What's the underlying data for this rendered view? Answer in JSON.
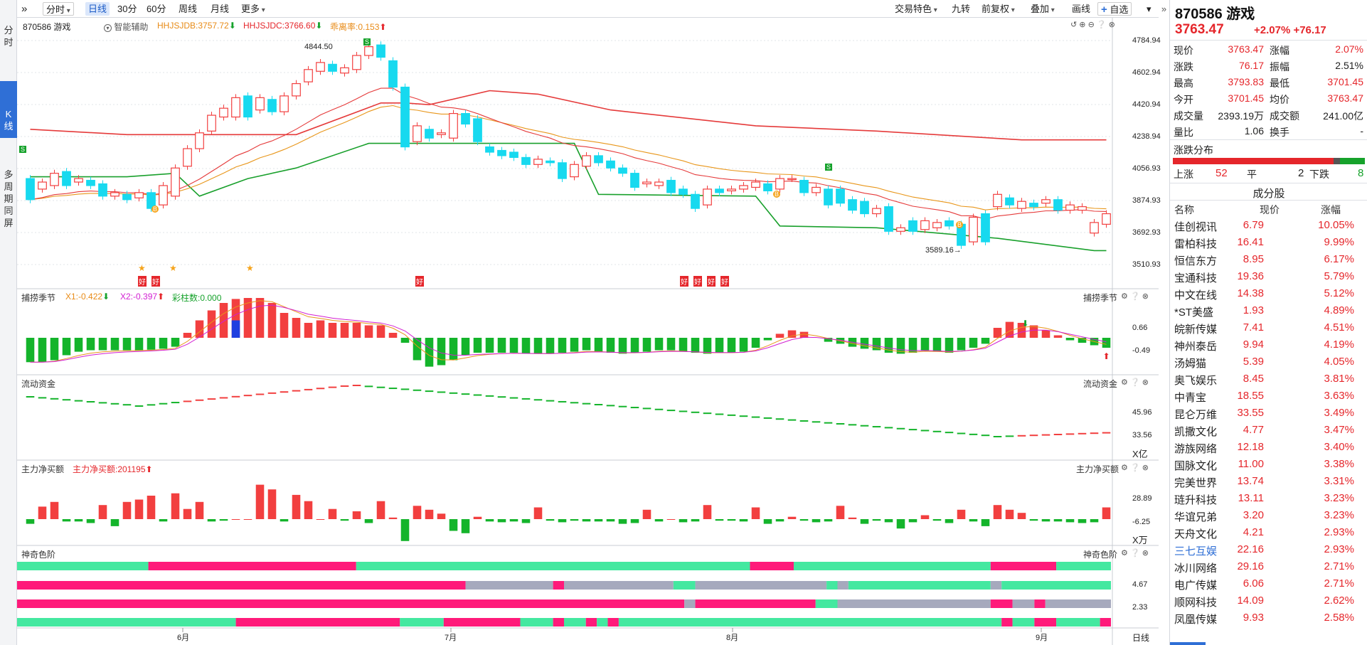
{
  "sidebar": {
    "items": [
      {
        "label": "分\n时",
        "active": false
      },
      {
        "label": "K\n线",
        "active": true
      },
      {
        "label": "多\n周\n期\n同\n屏",
        "active": false
      }
    ]
  },
  "toolbar": {
    "menu_icon": "double-chevron-right-icon",
    "period": {
      "label": "分时"
    },
    "tabs": [
      "日线",
      "30分",
      "60分",
      "周线",
      "月线"
    ],
    "selected_tab": "日线",
    "more": "更多",
    "right": [
      "交易特色",
      "九转",
      "前复权",
      "叠加",
      "画线"
    ],
    "watch": "自选"
  },
  "main_panel": {
    "stock": "870586 游戏",
    "assist": "智能辅助",
    "ind1": "HHJSJDB:3757.72",
    "ind2": "HHJSJDC:3766.60",
    "ind3": "乖离率:0.153",
    "high_label": "4844.50",
    "low_label": "3589.16",
    "y_ticks": [
      "4784.94",
      "4602.94",
      "4420.94",
      "4238.94",
      "4056.93",
      "3874.93",
      "3692.93",
      "3510.93"
    ],
    "badges": [
      "好",
      "好",
      "好",
      "好",
      "好",
      "好",
      "好"
    ],
    "b_signal": "B",
    "s_signal": "S"
  },
  "panel2": {
    "title": "捕捞季节",
    "x1": "X1:-0.422",
    "x2": "X2:-0.397",
    "extra": "彩柱数:0.000",
    "right_title": "捕捞季节",
    "y_ticks": [
      "0.66",
      "-0.49"
    ]
  },
  "panel3": {
    "title": "流动资金",
    "right_title": "流动资金",
    "y_ticks": [
      "45.96",
      "33.56"
    ],
    "unit": "X亿"
  },
  "panel4": {
    "title": "主力净买额",
    "value": "主力净买额:201195",
    "right_title": "主力净买额",
    "y_ticks": [
      "28.89",
      "-6.25"
    ],
    "unit": "X万"
  },
  "panel5": {
    "title": "神奇色阶",
    "right_title": "神奇色阶",
    "y_ticks": [
      "4.67",
      "2.33"
    ]
  },
  "x_axis": {
    "months": [
      "6月",
      "7月",
      "8月",
      "9月"
    ],
    "period_label": "日线"
  },
  "colors": {
    "up": "#f23f3f",
    "down": "#17d9ef",
    "green_line": "#19a02c",
    "red_line": "#e53a3a",
    "pink": "#ff1a7a",
    "mint": "#44e8a0",
    "grey": "#a6a9bd"
  },
  "chart_data": {
    "type": "candlestick",
    "y_range": [
      3510.93,
      4784.94
    ],
    "labeled_high": 4844.5,
    "labeled_low": 3589.16,
    "candles": [
      [
        4000,
        3880
      ],
      [
        3940,
        3980
      ],
      [
        3960,
        4030
      ],
      [
        4040,
        3960
      ],
      [
        3980,
        4000
      ],
      [
        3990,
        3960
      ],
      [
        3970,
        3900
      ],
      [
        3900,
        3920
      ],
      [
        3910,
        3880
      ],
      [
        3890,
        3920
      ],
      [
        3920,
        3830
      ],
      [
        3850,
        3960
      ],
      [
        3900,
        4060
      ],
      [
        4070,
        4170
      ],
      [
        4170,
        4260
      ],
      [
        4270,
        4360
      ],
      [
        4350,
        4400
      ],
      [
        4350,
        4460
      ],
      [
        4470,
        4350
      ],
      [
        4390,
        4460
      ],
      [
        4450,
        4380
      ],
      [
        4380,
        4470
      ],
      [
        4470,
        4540
      ],
      [
        4550,
        4620
      ],
      [
        4610,
        4660
      ],
      [
        4650,
        4610
      ],
      [
        4600,
        4630
      ],
      [
        4620,
        4700
      ],
      [
        4700,
        4750
      ],
      [
        4760,
        4690
      ],
      [
        4670,
        4520
      ],
      [
        4520,
        4180
      ],
      [
        4210,
        4300
      ],
      [
        4280,
        4230
      ],
      [
        4250,
        4260
      ],
      [
        4230,
        4370
      ],
      [
        4370,
        4310
      ],
      [
        4340,
        4210
      ],
      [
        4180,
        4150
      ],
      [
        4160,
        4130
      ],
      [
        4150,
        4120
      ],
      [
        4120,
        4080
      ],
      [
        4080,
        4110
      ],
      [
        4100,
        4090
      ],
      [
        4090,
        4000
      ],
      [
        4010,
        4080
      ],
      [
        4070,
        4130
      ],
      [
        4130,
        4090
      ],
      [
        4100,
        4060
      ],
      [
        4060,
        4030
      ],
      [
        4030,
        3950
      ],
      [
        3970,
        3980
      ],
      [
        3960,
        3980
      ],
      [
        3990,
        3920
      ],
      [
        3940,
        3910
      ],
      [
        3910,
        3830
      ],
      [
        3850,
        3940
      ],
      [
        3940,
        3920
      ],
      [
        3930,
        3940
      ],
      [
        3940,
        3960
      ],
      [
        3950,
        3980
      ],
      [
        3970,
        3930
      ],
      [
        3940,
        4000
      ],
      [
        4000,
        4000
      ],
      [
        3990,
        3920
      ],
      [
        3920,
        3950
      ],
      [
        3940,
        3850
      ],
      [
        3940,
        3860
      ],
      [
        3880,
        3820
      ],
      [
        3870,
        3800
      ],
      [
        3800,
        3830
      ],
      [
        3840,
        3700
      ],
      [
        3700,
        3720
      ],
      [
        3760,
        3700
      ],
      [
        3710,
        3760
      ],
      [
        3720,
        3750
      ],
      [
        3760,
        3730
      ],
      [
        3740,
        3620
      ],
      [
        3640,
        3780
      ],
      [
        3800,
        3640
      ],
      [
        3840,
        3910
      ],
      [
        3890,
        3850
      ],
      [
        3830,
        3870
      ],
      [
        3860,
        3840
      ],
      [
        3860,
        3880
      ],
      [
        3880,
        3820
      ],
      [
        3820,
        3850
      ],
      [
        3820,
        3840
      ],
      [
        3690,
        3750
      ],
      [
        3740,
        3800
      ]
    ],
    "osc_bars": [
      -0.49,
      -0.49,
      -0.45,
      -0.35,
      -0.28,
      -0.25,
      -0.25,
      -0.25,
      -0.25,
      -0.25,
      -0.24,
      -0.22,
      -0.18,
      0.1,
      0.35,
      0.55,
      0.7,
      0.78,
      0.8,
      0.8,
      0.7,
      0.5,
      0.4,
      0.3,
      0.35,
      0.3,
      0.3,
      0.3,
      0.25,
      0.25,
      0.1,
      -0.1,
      -0.45,
      -0.58,
      -0.55,
      -0.45,
      -0.35,
      -0.3,
      -0.3,
      -0.3,
      -0.3,
      -0.32,
      -0.32,
      -0.32,
      -0.3,
      -0.28,
      -0.25,
      -0.28,
      -0.3,
      -0.32,
      -0.3,
      -0.28,
      -0.25,
      -0.25,
      -0.28,
      -0.3,
      -0.32,
      -0.3,
      -0.3,
      -0.28,
      -0.2,
      -0.05,
      0.08,
      0.15,
      0.12,
      0.0,
      -0.08,
      -0.12,
      -0.18,
      -0.22,
      -0.25,
      -0.3,
      -0.32,
      -0.3,
      -0.25,
      -0.28,
      -0.3,
      -0.25,
      -0.2,
      -0.12,
      0.2,
      0.32,
      0.3,
      0.25,
      0.15,
      0.05,
      -0.05,
      -0.1,
      -0.15,
      -0.2
    ],
    "net_buy": [
      -6,
      16,
      22,
      -3,
      -3,
      -5,
      18,
      -9,
      22,
      25,
      30,
      -3,
      33,
      13,
      22,
      -3,
      -2,
      0,
      0,
      44,
      38,
      -3,
      31,
      23,
      0,
      13,
      -2,
      10,
      -5,
      23,
      2,
      -28,
      17,
      12,
      7,
      -15,
      -18,
      3,
      -3,
      -4,
      -3,
      -5,
      15,
      -2,
      -4,
      -2,
      -3,
      -3,
      -3,
      -6,
      -5,
      12,
      -3,
      0,
      -4,
      -3,
      18,
      -2,
      -2,
      -3,
      15,
      -6,
      -3,
      3,
      -2,
      -4,
      -3,
      17,
      2,
      -6,
      -2,
      -4,
      -12,
      -4,
      5,
      -2,
      -5,
      12,
      -3,
      -9,
      18,
      12,
      8,
      -2,
      -3,
      -3,
      -4,
      -5,
      -4,
      15
    ]
  },
  "quote": {
    "code": "870586 游戏",
    "price": "3763.47",
    "change": "+2.07% +76.17",
    "stats": [
      {
        "l1": "现价",
        "v1": "3763.47",
        "c1": "red",
        "l2": "涨幅",
        "v2": "2.07%",
        "c2": "red"
      },
      {
        "l1": "涨跌",
        "v1": "76.17",
        "c1": "red",
        "l2": "振幅",
        "v2": "2.51%",
        "c2": ""
      },
      {
        "l1": "最高",
        "v1": "3793.83",
        "c1": "red",
        "l2": "最低",
        "v2": "3701.45",
        "c2": "red"
      },
      {
        "l1": "今开",
        "v1": "3701.45",
        "c1": "red",
        "l2": "均价",
        "v2": "3763.47",
        "c2": "red"
      },
      {
        "l1": "成交量",
        "v1": "2393.19万",
        "c1": "",
        "l2": "成交额",
        "v2": "241.00亿",
        "c2": ""
      },
      {
        "l1": "量比",
        "v1": "1.06",
        "c1": "",
        "l2": "换手",
        "v2": "-",
        "c2": ""
      }
    ],
    "dist_title": "涨跌分布",
    "up_label": "上涨",
    "up": "52",
    "flat_label": "平",
    "flat": "2",
    "down_label": "下跌",
    "down": "8",
    "components_title": "成分股",
    "headers": [
      "名称",
      "现价",
      "涨幅"
    ],
    "stocks": [
      {
        "name": "佳创视讯",
        "price": "6.79",
        "pct": "10.05%"
      },
      {
        "name": "雷柏科技",
        "price": "16.41",
        "pct": "9.99%"
      },
      {
        "name": "恒信东方",
        "price": "8.95",
        "pct": "6.17%"
      },
      {
        "name": "宝通科技",
        "price": "19.36",
        "pct": "5.79%"
      },
      {
        "name": "中文在线",
        "price": "14.38",
        "pct": "5.12%"
      },
      {
        "name": "*ST美盛",
        "price": "1.93",
        "pct": "4.89%"
      },
      {
        "name": "皖新传媒",
        "price": "7.41",
        "pct": "4.51%"
      },
      {
        "name": "神州泰岳",
        "price": "9.94",
        "pct": "4.19%"
      },
      {
        "name": "汤姆猫",
        "price": "5.39",
        "pct": "4.05%"
      },
      {
        "name": "奥飞娱乐",
        "price": "8.45",
        "pct": "3.81%"
      },
      {
        "name": "中青宝",
        "price": "18.55",
        "pct": "3.63%"
      },
      {
        "name": "昆仑万维",
        "price": "33.55",
        "pct": "3.49%"
      },
      {
        "name": "凯撒文化",
        "price": "4.77",
        "pct": "3.47%"
      },
      {
        "name": "游族网络",
        "price": "12.18",
        "pct": "3.40%"
      },
      {
        "name": "国脉文化",
        "price": "11.00",
        "pct": "3.38%"
      },
      {
        "name": "完美世界",
        "price": "13.74",
        "pct": "3.31%"
      },
      {
        "name": "琏升科技",
        "price": "13.11",
        "pct": "3.23%"
      },
      {
        "name": "华谊兄弟",
        "price": "3.20",
        "pct": "3.23%"
      },
      {
        "name": "天舟文化",
        "price": "4.21",
        "pct": "2.93%"
      },
      {
        "name": "三七互娱",
        "price": "22.16",
        "pct": "2.93%",
        "highlight": true
      },
      {
        "name": "冰川网络",
        "price": "29.16",
        "pct": "2.71%"
      },
      {
        "name": "电广传媒",
        "price": "6.06",
        "pct": "2.71%"
      },
      {
        "name": "顺网科技",
        "price": "14.09",
        "pct": "2.62%"
      },
      {
        "name": "凤凰传媒",
        "price": "9.93",
        "pct": "2.58%"
      }
    ]
  }
}
